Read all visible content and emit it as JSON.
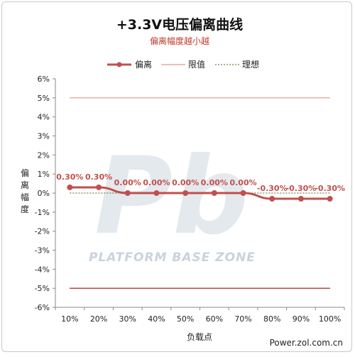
{
  "chart_data": {
    "type": "line",
    "title": "+3.3V电压偏离曲线",
    "subtitle": "偏离幅度越小越",
    "ylabel": "偏离幅度",
    "xlabel": "负载点",
    "categories": [
      "10%",
      "20%",
      "30%",
      "40%",
      "50%",
      "60%",
      "70%",
      "80%",
      "90%",
      "100%"
    ],
    "series": [
      {
        "name": "偏离",
        "values": [
          0.3,
          0.3,
          0.0,
          0.0,
          0.0,
          0.0,
          0.0,
          -0.3,
          -0.3,
          -0.3
        ],
        "labels": [
          "0.30%",
          "0.30%",
          "0.00%",
          "0.00%",
          "0.00%",
          "0.00%",
          "0.00%",
          "-0.30%",
          "-0.30%",
          "-0.30%"
        ],
        "color": "#c0504d"
      }
    ],
    "limits": {
      "name": "限值",
      "values": [
        5,
        -5
      ],
      "color": "#c0504d"
    },
    "ideal": {
      "name": "理想",
      "value": 0,
      "color": "#4f6228"
    },
    "ylim": [
      -6,
      6
    ],
    "yticks": [
      "6%",
      "5%",
      "4%",
      "3%",
      "2%",
      "1%",
      "0%",
      "-1%",
      "-2%",
      "-3%",
      "-4%",
      "-5%",
      "-6%"
    ],
    "grid": false,
    "legend": "top"
  },
  "watermark": {
    "logo": "Pb",
    "text": "PLATFORM BASE ZONE"
  },
  "source": "Power.zol.com.cn"
}
